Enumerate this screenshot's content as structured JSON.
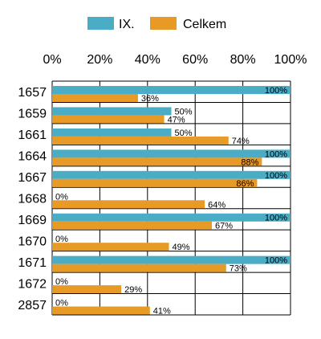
{
  "chart_data": {
    "type": "bar",
    "orientation": "horizontal",
    "categories": [
      "1657",
      "1659",
      "1661",
      "1664",
      "1667",
      "1668",
      "1669",
      "1670",
      "1671",
      "1672",
      "2857"
    ],
    "series": [
      {
        "name": "IX.",
        "color": "#4bacc6",
        "values": [
          100,
          50,
          50,
          100,
          100,
          0,
          100,
          0,
          100,
          0,
          0
        ],
        "labels": [
          "100%",
          "50%",
          "50%",
          "100%",
          "100%",
          "0%",
          "100%",
          "0%",
          "100%",
          "0%",
          "0%"
        ]
      },
      {
        "name": "Celkem",
        "color": "#e89a26",
        "values": [
          36,
          47,
          74,
          88,
          86,
          64,
          67,
          49,
          73,
          29,
          41
        ],
        "labels": [
          "36%",
          "47%",
          "74%",
          "88%",
          "86%",
          "64%",
          "67%",
          "49%",
          "73%",
          "29%",
          "41%"
        ]
      }
    ],
    "x_ticks": [
      "0%",
      "20%",
      "40%",
      "60%",
      "80%",
      "100%"
    ],
    "xlim": [
      0,
      100
    ],
    "xaxis_position": "top",
    "grid": true,
    "legend_position": "top"
  }
}
